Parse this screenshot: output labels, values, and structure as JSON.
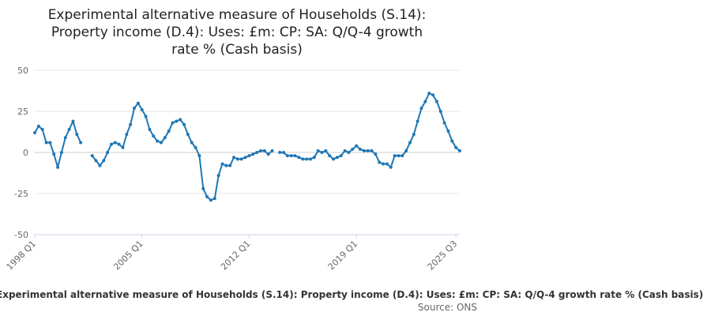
{
  "chart_data": {
    "type": "line",
    "title_lines": [
      "Experimental alternative measure of Households (S.14):",
      "Property income (D.4): Uses: £m: CP: SA: Q/Q-4 growth",
      "rate % (Cash basis)"
    ],
    "legend": "Experimental alternative measure of Households (S.14): Property income (D.4): Uses: £m: CP: SA: Q/Q-4 growth rate % (Cash basis)",
    "source": "Source: ONS",
    "ylim": [
      -50,
      50
    ],
    "yticks": [
      50,
      25,
      0,
      -25,
      -50
    ],
    "xlabels": [
      "1998 Q1",
      "2005 Q1",
      "2012 Q1",
      "2019 Q1",
      "2025 Q3"
    ],
    "xlabel_index": [
      0,
      28,
      56,
      84,
      110
    ],
    "grid": true,
    "series": [
      {
        "name": "Experimental alternative measure of Households (S.14): Property income (D.4): Uses: £m: CP: SA: Q/Q-4 growth rate % (Cash basis)",
        "color": "#1f77b4",
        "values": [
          12,
          16,
          14,
          6,
          6,
          -1,
          -9,
          0,
          9,
          14,
          19,
          11,
          6,
          null,
          null,
          -2,
          -5,
          -8,
          -5,
          0,
          5,
          6,
          5,
          3,
          11,
          17,
          27,
          30,
          26,
          22,
          14,
          10,
          7,
          6,
          9,
          13,
          18,
          19,
          20,
          17,
          11,
          6,
          3,
          -2,
          -22,
          -27,
          -29,
          -28,
          -14,
          -7,
          -8,
          -8,
          -3,
          -4,
          -4,
          -3,
          -2,
          -1,
          0,
          1,
          1,
          -1,
          1,
          null,
          0,
          0,
          -2,
          -2,
          -2,
          -3,
          -4,
          -4,
          -4,
          -3,
          1,
          0,
          1,
          -2,
          -4,
          -3,
          -2,
          1,
          0,
          2,
          4,
          2,
          1,
          1,
          1,
          -1,
          -6,
          -7,
          -7,
          -9,
          -2,
          -2,
          -2,
          1,
          6,
          11,
          19,
          27,
          31,
          36,
          35,
          31,
          25,
          18,
          13,
          7,
          3,
          1
        ]
      }
    ]
  }
}
